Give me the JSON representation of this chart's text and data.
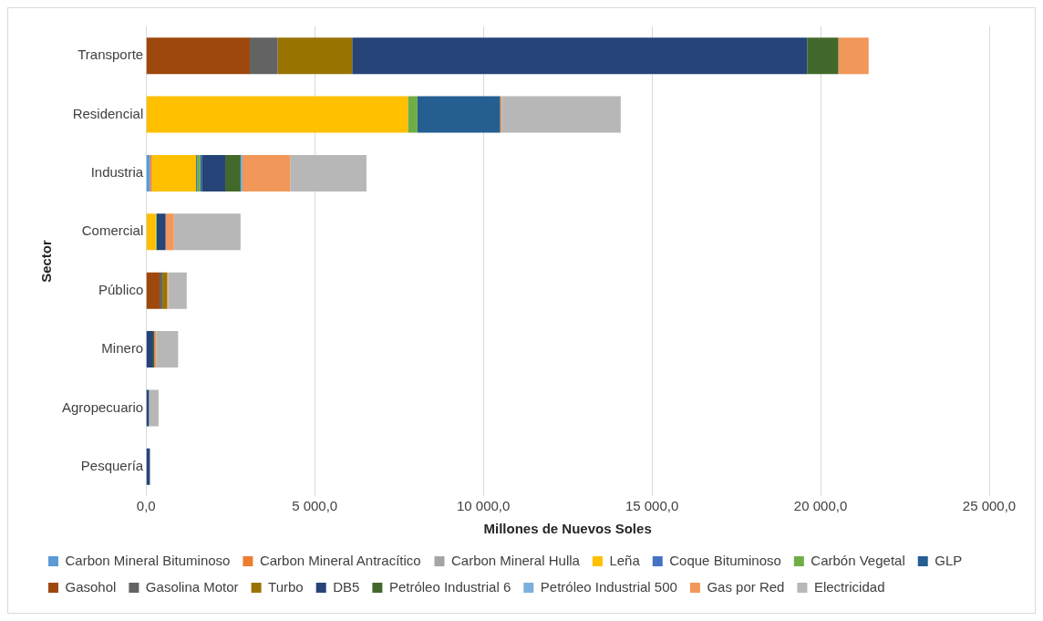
{
  "chart_data": {
    "type": "bar",
    "orientation": "horizontal",
    "stacked": true,
    "xlabel": "Millones de Nuevos Soles",
    "ylabel": "Sector",
    "categories": [
      "Transporte",
      "Residencial",
      "Industria",
      "Comercial",
      "Público",
      "Minero",
      "Agropecuario",
      "Pesquería"
    ],
    "xlim": [
      0,
      25000
    ],
    "xticks": [
      {
        "value": 0,
        "label": "0,0"
      },
      {
        "value": 5000,
        "label": "5 000,0"
      },
      {
        "value": 10000,
        "label": "10 000,0"
      },
      {
        "value": 15000,
        "label": "15 000,0"
      },
      {
        "value": 20000,
        "label": "20 000,0"
      },
      {
        "value": 25000,
        "label": "25 000,0"
      }
    ],
    "grid": "x",
    "legend": "bottom",
    "series": [
      {
        "name": "Carbon Mineral Bituminoso",
        "color": "#5b9bd5",
        "values": [
          0,
          0,
          114,
          0,
          0,
          0,
          0,
          0
        ]
      },
      {
        "name": "Carbon Mineral Antracítico",
        "color": "#ed7d31",
        "values": [
          0,
          0,
          57,
          0,
          0,
          0,
          0,
          0
        ]
      },
      {
        "name": "Carbon Mineral Hulla",
        "color": "#a5a5a5",
        "values": [
          0,
          0,
          0,
          0,
          0,
          0,
          0,
          0
        ]
      },
      {
        "name": "Leña",
        "color": "#ffc000",
        "values": [
          0,
          7764,
          1310,
          285,
          0,
          0,
          0,
          0
        ]
      },
      {
        "name": "Coque Bituminoso",
        "color": "#4472c4",
        "values": [
          0,
          0,
          30,
          0,
          0,
          0,
          0,
          0
        ]
      },
      {
        "name": "Carbón Vegetal",
        "color": "#70ad47",
        "values": [
          0,
          284,
          95,
          28,
          0,
          0,
          0,
          0
        ]
      },
      {
        "name": "GLP",
        "color": "#255e91",
        "values": [
          0,
          2451,
          57,
          0,
          0,
          0,
          0,
          0
        ]
      },
      {
        "name": "Gasohol",
        "color": "#9e480e",
        "values": [
          3077,
          0,
          0,
          0,
          399,
          0,
          0,
          0
        ]
      },
      {
        "name": "Gasolina Motor",
        "color": "#636363",
        "values": [
          826,
          0,
          0,
          0,
          85,
          0,
          0,
          0
        ]
      },
      {
        "name": "Turbo",
        "color": "#997300",
        "values": [
          2208,
          0,
          0,
          0,
          142,
          0,
          0,
          0
        ]
      },
      {
        "name": "DB5",
        "color": "#264478",
        "values": [
          13490,
          0,
          684,
          266,
          0,
          209,
          85,
          114
        ]
      },
      {
        "name": "Petróleo Industrial 6",
        "color": "#43682b",
        "values": [
          926,
          0,
          456,
          0,
          0,
          38,
          0,
          0
        ]
      },
      {
        "name": "Petróleo Industrial 500",
        "color": "#7cafdd",
        "values": [
          0,
          0,
          57,
          0,
          0,
          0,
          0,
          0
        ]
      },
      {
        "name": "Gas por Red",
        "color": "#f1975a",
        "values": [
          898,
          50,
          1415,
          247,
          28,
          57,
          0,
          0
        ]
      },
      {
        "name": "Electricidad",
        "color": "#b7b7b7",
        "values": [
          null,
          3525,
          2260,
          1975,
          551,
          646,
          285,
          null
        ]
      }
    ]
  }
}
